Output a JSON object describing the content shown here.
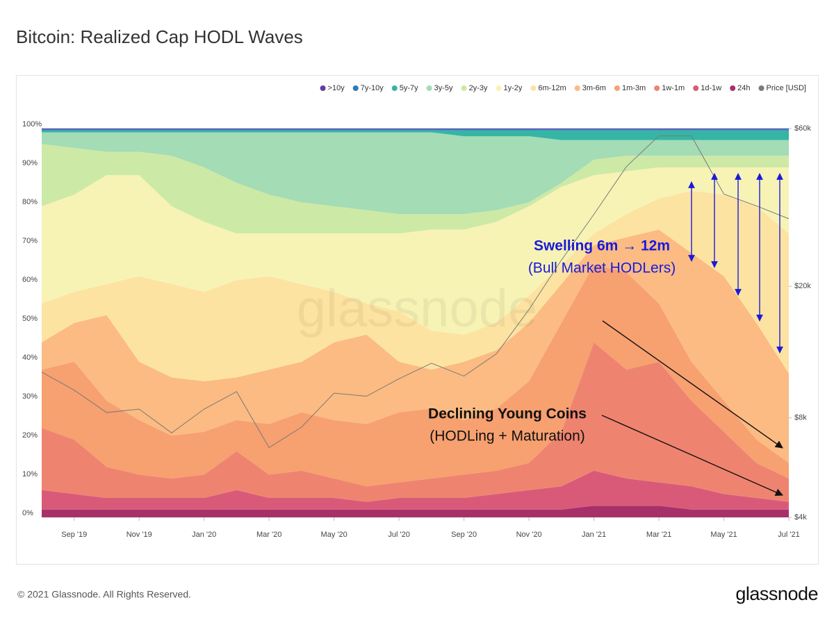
{
  "chart_data": {
    "type": "stacked_area",
    "title": "Bitcoin: Realized Cap HODL Waves",
    "x": [
      "2019-08",
      "2019-09",
      "2019-10",
      "2019-11",
      "2019-12",
      "2020-01",
      "2020-02",
      "2020-03",
      "2020-04",
      "2020-05",
      "2020-06",
      "2020-07",
      "2020-08",
      "2020-09",
      "2020-10",
      "2020-11",
      "2020-12",
      "2021-01",
      "2021-02",
      "2021-03",
      "2021-04",
      "2021-05",
      "2021-06",
      "2021-07"
    ],
    "xlim": [
      "2019-08",
      "2021-07"
    ],
    "xticks": [
      {
        "value": "2019-09",
        "label": "Sep '19"
      },
      {
        "value": "2019-11",
        "label": "Nov '19"
      },
      {
        "value": "2020-01",
        "label": "Jan '20"
      },
      {
        "value": "2020-03",
        "label": "Mar '20"
      },
      {
        "value": "2020-05",
        "label": "May '20"
      },
      {
        "value": "2020-07",
        "label": "Jul '20"
      },
      {
        "value": "2020-09",
        "label": "Sep '20"
      },
      {
        "value": "2020-11",
        "label": "Nov '20"
      },
      {
        "value": "2021-01",
        "label": "Jan '21"
      },
      {
        "value": "2021-03",
        "label": "Mar '21"
      },
      {
        "value": "2021-05",
        "label": "May '21"
      },
      {
        "value": "2021-07",
        "label": "Jul '21"
      }
    ],
    "ylim": [
      0,
      100
    ],
    "yticks": [
      {
        "value": 0,
        "label": "0%"
      },
      {
        "value": 10,
        "label": "10%"
      },
      {
        "value": 20,
        "label": "20%"
      },
      {
        "value": 30,
        "label": "30%"
      },
      {
        "value": 40,
        "label": "40%"
      },
      {
        "value": 50,
        "label": "50%"
      },
      {
        "value": 60,
        "label": "60%"
      },
      {
        "value": 70,
        "label": "70%"
      },
      {
        "value": 80,
        "label": "80%"
      },
      {
        "value": 90,
        "label": "90%"
      },
      {
        "value": 100,
        "label": "100%"
      }
    ],
    "y2lim": [
      4000,
      60000
    ],
    "y2scale": "log",
    "y2ticks": [
      {
        "value": 4000,
        "label": "$4k"
      },
      {
        "value": 8000,
        "label": "$8k"
      },
      {
        "value": 20000,
        "label": "$20k"
      },
      {
        "value": 60000,
        "label": "$60k"
      }
    ],
    "grid": true,
    "legend": "top-right",
    "series": [
      {
        "name": ">10y",
        "color": "#5b3fa8",
        "values": [
          0.2,
          0.2,
          0.2,
          0.2,
          0.2,
          0.2,
          0.2,
          0.2,
          0.2,
          0.2,
          0.2,
          0.2,
          0.2,
          0.2,
          0.2,
          0.2,
          0.2,
          0.2,
          0.2,
          0.2,
          0.2,
          0.2,
          0.2,
          0.2
        ]
      },
      {
        "name": "7y-10y",
        "color": "#2b7bba",
        "values": [
          0.3,
          0.3,
          0.3,
          0.3,
          0.3,
          0.3,
          0.3,
          0.3,
          0.3,
          0.3,
          0.3,
          0.3,
          0.3,
          0.3,
          0.3,
          0.3,
          0.3,
          0.3,
          0.3,
          0.3,
          0.3,
          0.3,
          0.3,
          0.3
        ]
      },
      {
        "name": "5y-7y",
        "color": "#36b5a5",
        "values": [
          0.5,
          0.5,
          0.5,
          0.5,
          0.5,
          0.5,
          0.5,
          0.5,
          0.5,
          0.5,
          0.5,
          0.5,
          0.5,
          1.5,
          1.5,
          1.5,
          2.5,
          2.5,
          2.5,
          2.5,
          2.5,
          2.5,
          2.5,
          2.5
        ]
      },
      {
        "name": "3y-5y",
        "color": "#a3dcb5",
        "values": [
          3,
          4,
          5,
          5,
          6,
          9,
          13,
          16,
          18,
          19,
          20,
          21,
          21,
          20,
          19,
          17,
          11,
          5,
          4,
          4,
          4,
          4,
          4,
          4
        ]
      },
      {
        "name": "2y-3y",
        "color": "#cde9a6",
        "values": [
          16,
          12,
          6,
          6,
          13,
          14,
          13,
          10,
          8,
          7,
          6,
          5,
          4,
          4,
          3,
          1,
          1,
          4,
          4,
          3,
          3,
          3,
          3,
          3
        ]
      },
      {
        "name": "1y-2y",
        "color": "#f7f3b5",
        "values": [
          25,
          25,
          28,
          26,
          20,
          18,
          12,
          11,
          13,
          15,
          18,
          20,
          26,
          27,
          26,
          23,
          20,
          15,
          11,
          8,
          6,
          7,
          10,
          17
        ]
      },
      {
        "name": "6m-12m",
        "color": "#fde3a1",
        "values": [
          10,
          8,
          8,
          22,
          24,
          23,
          25,
          24,
          20,
          13,
          8,
          13,
          10,
          7,
          7,
          7,
          5,
          3,
          6,
          8,
          16,
          21,
          30,
          36
        ]
      },
      {
        "name": "3m-6m",
        "color": "#fbbb82",
        "values": [
          7,
          10,
          22,
          15,
          15,
          13,
          11,
          14,
          13,
          20,
          23,
          13,
          10,
          15,
          15,
          15,
          10,
          5,
          9,
          19,
          28,
          32,
          30,
          23
        ]
      },
      {
        "name": "1m-3m",
        "color": "#f7a070",
        "values": [
          15,
          20,
          17,
          14,
          11,
          11,
          8,
          13,
          15,
          15,
          16,
          18,
          18,
          14,
          16,
          21,
          28,
          20,
          25,
          15,
          10,
          8,
          6,
          4
        ]
      },
      {
        "name": "1w-1m",
        "color": "#ee8470",
        "values": [
          16,
          14,
          8,
          6,
          5,
          6,
          10,
          6,
          7,
          5,
          4,
          4,
          5,
          6,
          6,
          7,
          14,
          33,
          28,
          31,
          22,
          16,
          9,
          6
        ]
      },
      {
        "name": "1d-1w",
        "color": "#d95a78",
        "values": [
          5,
          4,
          3,
          3,
          3,
          3,
          5,
          3,
          3,
          3,
          2,
          3,
          3,
          3,
          4,
          5,
          6,
          9,
          7,
          6,
          6,
          4,
          3,
          2
        ]
      },
      {
        "name": "24h",
        "color": "#a8306a",
        "values": [
          2,
          2,
          2,
          2,
          2,
          2,
          2,
          2,
          2,
          2,
          2,
          2,
          2,
          2,
          2,
          2,
          2,
          3,
          3,
          3,
          2,
          2,
          2,
          2
        ]
      },
      {
        "name": "Price [USD]",
        "color": "#7a7a7a",
        "axis": "y2",
        "type": "line",
        "values": [
          11000,
          9700,
          8300,
          8500,
          7200,
          8500,
          9600,
          6500,
          7500,
          9500,
          9300,
          10500,
          11700,
          10700,
          12500,
          17000,
          24000,
          33000,
          46000,
          57000,
          57000,
          38000,
          35000,
          32000
        ]
      }
    ],
    "annotations": [
      "Swelling 6m → 12m",
      "(Bull Market HODLers)",
      "Declining Young Coins",
      "(HODLing + Maturation)"
    ],
    "watermark": "glassnode"
  },
  "footer": {
    "copyright": "© 2021 Glassnode. All Rights Reserved.",
    "logo": "glassnode"
  }
}
